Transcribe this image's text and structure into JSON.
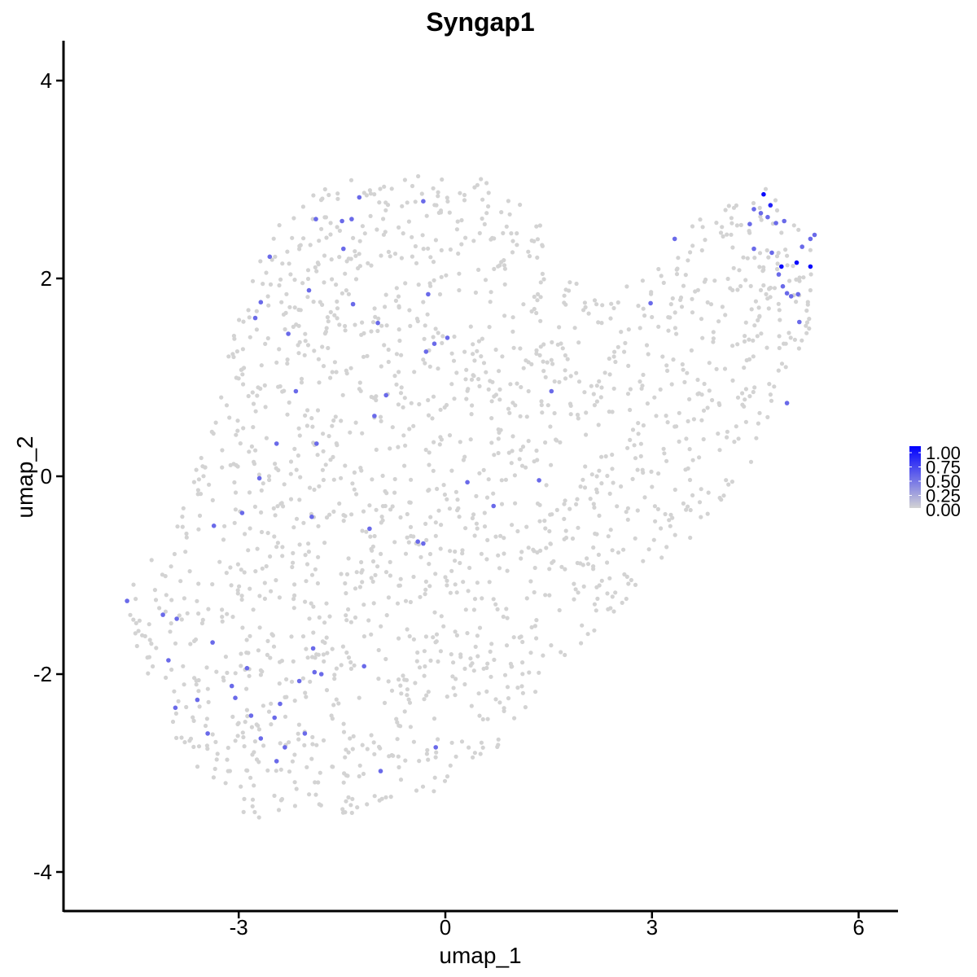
{
  "chart_data": {
    "type": "scatter",
    "title": "Syngap1",
    "xlabel": "umap_1",
    "ylabel": "umap_2",
    "xlim": [
      -5.6,
      6.55
    ],
    "ylim": [
      -4.35,
      4.4
    ],
    "x_ticks": [
      -3,
      0,
      3,
      6
    ],
    "y_ticks": [
      -4,
      -2,
      0,
      2,
      4
    ],
    "grid": false,
    "legend_position": "right",
    "colors": {
      "low": "#d3d3d3",
      "high": "#0000ff"
    },
    "color_scale": {
      "title": "",
      "range": [
        0,
        1
      ],
      "labels": [
        "1.00",
        "0.75",
        "0.50",
        "0.25",
        "0.00"
      ]
    },
    "point_count_approx": 1800,
    "background_cloud_note_free": true,
    "expressing_points": [
      {
        "x": -4.62,
        "y": -1.26,
        "v": 0.5
      },
      {
        "x": -4.1,
        "y": -1.4,
        "v": 0.5
      },
      {
        "x": -3.9,
        "y": -1.44,
        "v": 0.5
      },
      {
        "x": -4.02,
        "y": -1.86,
        "v": 0.5
      },
      {
        "x": -3.92,
        "y": -2.34,
        "v": 0.5
      },
      {
        "x": -3.6,
        "y": -2.26,
        "v": 0.5
      },
      {
        "x": -3.45,
        "y": -2.6,
        "v": 0.5
      },
      {
        "x": -3.38,
        "y": -1.68,
        "v": 0.5
      },
      {
        "x": -3.1,
        "y": -2.12,
        "v": 0.5
      },
      {
        "x": -3.05,
        "y": -2.24,
        "v": 0.5
      },
      {
        "x": -2.88,
        "y": -1.94,
        "v": 0.5
      },
      {
        "x": -2.82,
        "y": -2.42,
        "v": 0.5
      },
      {
        "x": -2.68,
        "y": -2.65,
        "v": 0.5
      },
      {
        "x": -2.48,
        "y": -2.44,
        "v": 0.5
      },
      {
        "x": -2.4,
        "y": -2.3,
        "v": 0.5
      },
      {
        "x": -2.45,
        "y": -2.88,
        "v": 0.5
      },
      {
        "x": -2.33,
        "y": -2.74,
        "v": 0.5
      },
      {
        "x": -2.12,
        "y": -2.07,
        "v": 0.5
      },
      {
        "x": -2.04,
        "y": -2.6,
        "v": 0.5
      },
      {
        "x": -1.9,
        "y": -1.98,
        "v": 0.5
      },
      {
        "x": -1.8,
        "y": -2.0,
        "v": 0.5
      },
      {
        "x": -1.92,
        "y": -1.74,
        "v": 0.5
      },
      {
        "x": -1.18,
        "y": -1.92,
        "v": 0.5
      },
      {
        "x": -0.94,
        "y": -2.98,
        "v": 0.5
      },
      {
        "x": -0.14,
        "y": -2.74,
        "v": 0.5
      },
      {
        "x": -3.36,
        "y": -0.5,
        "v": 0.5
      },
      {
        "x": -2.95,
        "y": -0.37,
        "v": 0.5
      },
      {
        "x": -2.7,
        "y": -0.02,
        "v": 0.5
      },
      {
        "x": -1.94,
        "y": -0.41,
        "v": 0.5
      },
      {
        "x": -1.87,
        "y": 0.33,
        "v": 0.5
      },
      {
        "x": -2.45,
        "y": 0.33,
        "v": 0.5
      },
      {
        "x": -2.17,
        "y": 0.86,
        "v": 0.5
      },
      {
        "x": -1.1,
        "y": -0.53,
        "v": 0.5
      },
      {
        "x": -1.03,
        "y": 0.61,
        "v": 0.5
      },
      {
        "x": -0.86,
        "y": 0.82,
        "v": 0.5
      },
      {
        "x": -0.4,
        "y": -0.66,
        "v": 0.5
      },
      {
        "x": -0.32,
        "y": -0.68,
        "v": 0.5
      },
      {
        "x": 0.32,
        "y": -0.06,
        "v": 0.5
      },
      {
        "x": 0.7,
        "y": -0.3,
        "v": 0.5
      },
      {
        "x": 1.36,
        "y": -0.04,
        "v": 0.5
      },
      {
        "x": 1.54,
        "y": 0.86,
        "v": 0.5
      },
      {
        "x": -0.28,
        "y": 1.26,
        "v": 0.5
      },
      {
        "x": -0.16,
        "y": 1.34,
        "v": 0.5
      },
      {
        "x": 0.03,
        "y": 1.4,
        "v": 0.5
      },
      {
        "x": -1.34,
        "y": 1.74,
        "v": 0.5
      },
      {
        "x": -0.98,
        "y": 1.55,
        "v": 0.5
      },
      {
        "x": -0.25,
        "y": 1.84,
        "v": 0.5
      },
      {
        "x": -2.28,
        "y": 1.44,
        "v": 0.5
      },
      {
        "x": -2.76,
        "y": 1.6,
        "v": 0.5
      },
      {
        "x": -2.68,
        "y": 1.76,
        "v": 0.5
      },
      {
        "x": -2.55,
        "y": 2.22,
        "v": 0.5
      },
      {
        "x": -1.98,
        "y": 1.88,
        "v": 0.5
      },
      {
        "x": -1.88,
        "y": 2.6,
        "v": 0.5
      },
      {
        "x": -1.5,
        "y": 2.58,
        "v": 0.5
      },
      {
        "x": -1.36,
        "y": 2.6,
        "v": 0.5
      },
      {
        "x": -1.48,
        "y": 2.3,
        "v": 0.5
      },
      {
        "x": -1.25,
        "y": 2.82,
        "v": 0.5
      },
      {
        "x": -0.32,
        "y": 2.78,
        "v": 0.5
      },
      {
        "x": 2.98,
        "y": 1.75,
        "v": 0.5
      },
      {
        "x": 3.33,
        "y": 2.4,
        "v": 0.5
      },
      {
        "x": 4.42,
        "y": 2.55,
        "v": 0.5
      },
      {
        "x": 4.48,
        "y": 2.7,
        "v": 0.5
      },
      {
        "x": 4.58,
        "y": 2.66,
        "v": 0.5
      },
      {
        "x": 4.68,
        "y": 2.62,
        "v": 0.5
      },
      {
        "x": 4.62,
        "y": 2.85,
        "v": 0.95
      },
      {
        "x": 4.72,
        "y": 2.74,
        "v": 0.85
      },
      {
        "x": 4.8,
        "y": 2.56,
        "v": 0.5
      },
      {
        "x": 4.92,
        "y": 2.58,
        "v": 0.5
      },
      {
        "x": 4.48,
        "y": 2.3,
        "v": 0.5
      },
      {
        "x": 4.74,
        "y": 2.26,
        "v": 0.5
      },
      {
        "x": 4.88,
        "y": 2.12,
        "v": 0.95
      },
      {
        "x": 5.1,
        "y": 2.16,
        "v": 0.95
      },
      {
        "x": 5.3,
        "y": 2.12,
        "v": 0.95
      },
      {
        "x": 4.84,
        "y": 2.04,
        "v": 0.5
      },
      {
        "x": 4.9,
        "y": 1.92,
        "v": 0.5
      },
      {
        "x": 4.96,
        "y": 1.85,
        "v": 0.5
      },
      {
        "x": 5.02,
        "y": 1.82,
        "v": 0.5
      },
      {
        "x": 5.12,
        "y": 1.84,
        "v": 0.5
      },
      {
        "x": 5.18,
        "y": 2.32,
        "v": 0.5
      },
      {
        "x": 5.3,
        "y": 2.4,
        "v": 0.5
      },
      {
        "x": 5.36,
        "y": 2.44,
        "v": 0.5
      },
      {
        "x": 5.14,
        "y": 1.56,
        "v": 0.5
      },
      {
        "x": 4.96,
        "y": 0.74,
        "v": 0.5
      }
    ]
  }
}
